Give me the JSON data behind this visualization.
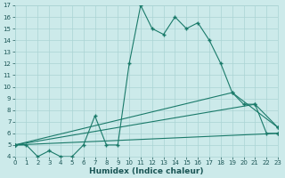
{
  "xlabel": "Humidex (Indice chaleur)",
  "ylabel": "",
  "bg_color": "#cceaea",
  "line_color": "#1a7a6a",
  "line1": {
    "x": [
      0,
      1,
      2,
      3,
      4,
      5,
      6,
      7,
      8,
      9,
      10,
      11,
      12,
      13,
      14,
      15,
      16,
      17,
      18,
      19,
      20,
      21,
      22,
      23
    ],
    "y": [
      5,
      5,
      4,
      4.5,
      4,
      4,
      5,
      7.5,
      5,
      5,
      12,
      17,
      15,
      14.5,
      16,
      15,
      15.5,
      14,
      12,
      9.5,
      8.5,
      8.5,
      6,
      6
    ]
  },
  "line2": {
    "x": [
      0,
      23
    ],
    "y": [
      5,
      6
    ]
  },
  "line3": {
    "x": [
      0,
      21,
      23
    ],
    "y": [
      5,
      8.5,
      6.5
    ]
  },
  "line4": {
    "x": [
      0,
      19,
      23
    ],
    "y": [
      5,
      9.5,
      6.5
    ]
  },
  "xmin": 0,
  "xmax": 23,
  "ymin": 4,
  "ymax": 17,
  "xtick_step": 1,
  "ytick_step": 1,
  "grid_color": "#aad4d4",
  "xlabel_fontsize": 6.5,
  "tick_fontsize": 5.0
}
